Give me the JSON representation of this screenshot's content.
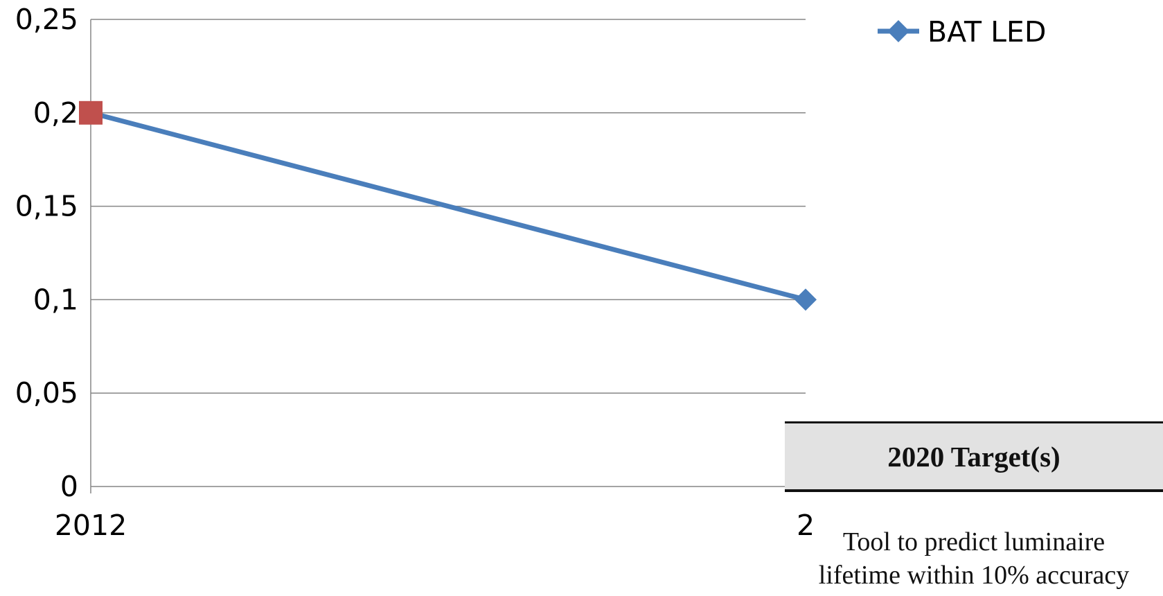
{
  "chart_data": {
    "type": "line",
    "title": "",
    "xlabel": "",
    "ylabel": "",
    "categories": [
      "2012",
      "2"
    ],
    "ylim": [
      0,
      0.25
    ],
    "yticks": [
      "0",
      "0,05",
      "0,1",
      "0,15",
      "0,2",
      "0,25"
    ],
    "grid": true,
    "legend_position": "top-right",
    "series": [
      {
        "name": "BAT LED",
        "values": [
          0.2,
          0.1
        ],
        "color": "#4a7ebb",
        "marker": "diamond"
      }
    ],
    "start_marker": {
      "value": 0.2,
      "color": "#c0504d",
      "shape": "square"
    }
  },
  "target_box": {
    "header": "2020 Target(s)",
    "body_lines": [
      "Tool to predict luminaire",
      "lifetime within 10% accuracy"
    ]
  }
}
